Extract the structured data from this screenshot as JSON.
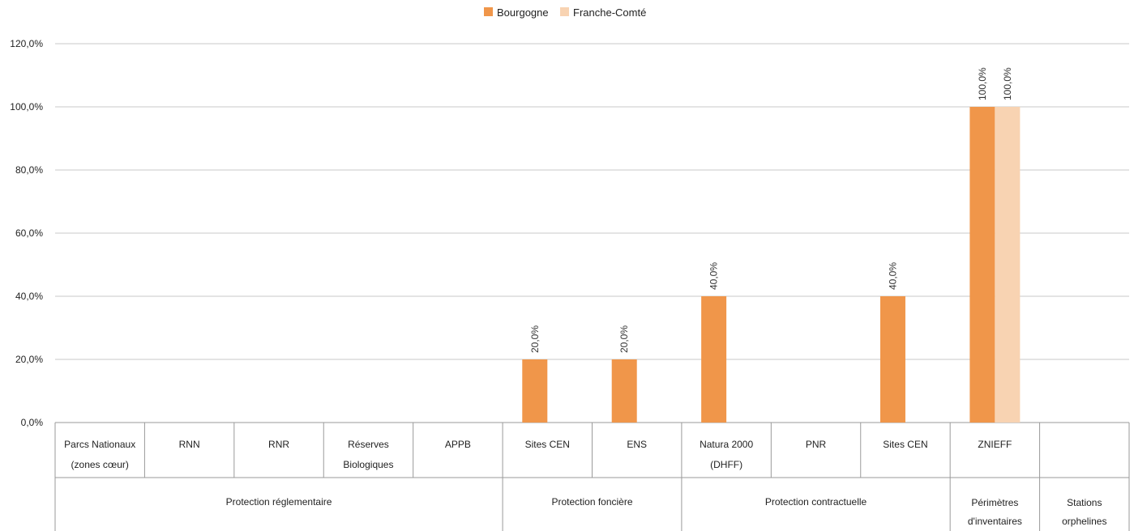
{
  "chart_data": {
    "type": "bar",
    "title": "",
    "xlabel": "",
    "ylabel": "",
    "ylim": [
      0,
      120
    ],
    "yticks": [
      "0,0%",
      "20,0%",
      "40,0%",
      "60,0%",
      "80,0%",
      "100,0%",
      "120,0%"
    ],
    "grid": true,
    "legend_position": "top-center",
    "categories": [
      {
        "lines": [
          "Parcs Nationaux",
          "(zones cœur)"
        ]
      },
      {
        "lines": [
          "RNN"
        ]
      },
      {
        "lines": [
          "RNR"
        ]
      },
      {
        "lines": [
          "Réserves",
          "Biologiques"
        ]
      },
      {
        "lines": [
          "APPB"
        ]
      },
      {
        "lines": [
          "Sites CEN"
        ]
      },
      {
        "lines": [
          "ENS"
        ]
      },
      {
        "lines": [
          "Natura 2000",
          "(DHFF)"
        ]
      },
      {
        "lines": [
          "PNR"
        ]
      },
      {
        "lines": [
          "Sites CEN"
        ]
      },
      {
        "lines": [
          "ZNIEFF"
        ]
      },
      {
        "lines": [
          ""
        ]
      }
    ],
    "groups": [
      {
        "lines": [
          "Protection  réglementaire"
        ],
        "start": 0,
        "end": 4
      },
      {
        "lines": [
          "Protection  foncière"
        ],
        "start": 5,
        "end": 6
      },
      {
        "lines": [
          "Protection  contractuelle"
        ],
        "start": 7,
        "end": 9
      },
      {
        "lines": [
          "Périmètres",
          "d'inventaires"
        ],
        "start": 10,
        "end": 10
      },
      {
        "lines": [
          "Stations",
          "orphelines"
        ],
        "start": 11,
        "end": 11
      }
    ],
    "series": [
      {
        "name": "Bourgogne",
        "color": "#f0964a",
        "values": [
          null,
          null,
          null,
          null,
          null,
          20,
          20,
          40,
          null,
          40,
          100,
          null
        ],
        "labels": [
          "",
          "",
          "",
          "",
          "",
          "20,0%",
          "20,0%",
          "40,0%",
          "",
          "40,0%",
          "100,0%",
          ""
        ]
      },
      {
        "name": "Franche-Comté",
        "color": "#f8d3b2",
        "values": [
          null,
          null,
          null,
          null,
          null,
          null,
          null,
          null,
          null,
          null,
          100,
          null
        ],
        "labels": [
          "",
          "",
          "",
          "",
          "",
          "",
          "",
          "",
          "",
          "",
          "100,0%",
          ""
        ]
      }
    ]
  }
}
